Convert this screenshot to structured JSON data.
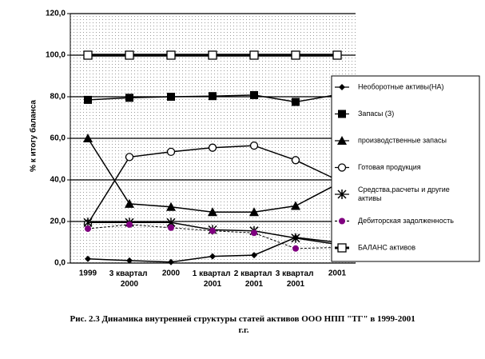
{
  "chart_data": {
    "type": "line",
    "title": "Рис. 2.3 Динамика внутренней структуры статей активов ООО НПП \"ТГ\" в 1999-2001 г.г.",
    "y_label": "% к итогу баланса",
    "categories": [
      "1999",
      "3 квартал 2000",
      "2000",
      "1 квартал 2001",
      "2 квартал 2001",
      "3 квартал 2001",
      "2001"
    ],
    "ylim": [
      0,
      120
    ],
    "yticks": [
      {
        "value": 0,
        "label": "0,0"
      },
      {
        "value": 20,
        "label": "20,0"
      },
      {
        "value": 40,
        "label": "40,0"
      },
      {
        "value": 60,
        "label": "60,0"
      },
      {
        "value": 80,
        "label": "80,0"
      },
      {
        "value": 100,
        "label": "100,0"
      },
      {
        "value": 120,
        "label": "120,0"
      }
    ],
    "grid": true,
    "legend": "right",
    "series": [
      {
        "name": "Необоротные активы(НА)",
        "color": "#000000",
        "marker": "diamond",
        "values": [
          2,
          1.2,
          0.5,
          3.2,
          3.8,
          12.3,
          10
        ]
      },
      {
        "name": "Запасы (З)",
        "color": "#000000",
        "marker": "square",
        "values": [
          78.5,
          79.5,
          80,
          80.3,
          80.8,
          77.5,
          81
        ]
      },
      {
        "name": "производственные запасы",
        "color": "#000000",
        "marker": "triangle",
        "values": [
          60,
          28.5,
          27,
          24.5,
          24.5,
          27.5,
          38
        ]
      },
      {
        "name": "Готовая продукция",
        "color": "#000000",
        "marker": "circle",
        "values": [
          19,
          51,
          53.5,
          55.5,
          56.5,
          49.5,
          40
        ]
      },
      {
        "name": "Средства,расчеты и другие активы",
        "color": "#000000",
        "marker": "star",
        "values": [
          19.5,
          19.5,
          19.5,
          16,
          15.5,
          12,
          9
        ]
      },
      {
        "name": "Дебиторская задолженность",
        "color": "#800080",
        "marker": "dot",
        "dash": true,
        "values": [
          16.5,
          18.5,
          17,
          15.5,
          14.5,
          7,
          7.5
        ]
      },
      {
        "name": "БАЛАНС активов",
        "color": "#000000",
        "marker": "open-square",
        "thick": true,
        "values": [
          100,
          100,
          100,
          100,
          100,
          100,
          100
        ]
      }
    ]
  }
}
